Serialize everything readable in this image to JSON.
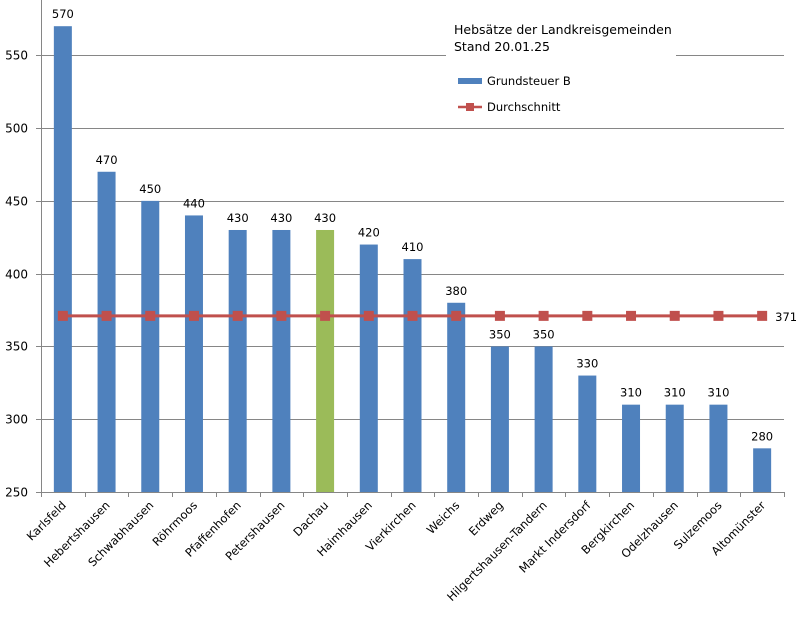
{
  "chart_data": {
    "type": "bar",
    "title": "Hebsätze der Landkreisgemeinden",
    "subtitle": "Stand 20.01.25",
    "xlabel": "",
    "ylabel": "",
    "ylim": [
      250,
      588
    ],
    "yticks": [
      250,
      300,
      350,
      400,
      450,
      500,
      550
    ],
    "grid": true,
    "legend_position": "top-right",
    "categories": [
      "Karlsfeld",
      "Hebertshausen",
      "Schwabhausen",
      "Röhrmoos",
      "Pfaffenhofen",
      "Petershausen",
      "Dachau",
      "Haimhausen",
      "Vierkirchen",
      "Weichs",
      "Erdweg",
      "Hilgertshausen-Tandern",
      "Markt Indersdorf",
      "Bergkirchen",
      "Odelzhausen",
      "Sulzemoos",
      "Altomünster"
    ],
    "series": [
      {
        "name": "Grundsteuer B",
        "kind": "bar",
        "color": "#4F81BD",
        "highlight_color": "#9BBB59",
        "highlight_index": 6,
        "values": [
          570,
          470,
          450,
          440,
          430,
          430,
          430,
          420,
          410,
          380,
          350,
          350,
          330,
          310,
          310,
          310,
          280
        ]
      },
      {
        "name": "Durchschnitt",
        "kind": "line",
        "color": "#C0504D",
        "values": [
          371,
          371,
          371,
          371,
          371,
          371,
          371,
          371,
          371,
          371,
          371,
          371,
          371,
          371,
          371,
          371,
          371
        ],
        "end_label": "371"
      }
    ]
  }
}
